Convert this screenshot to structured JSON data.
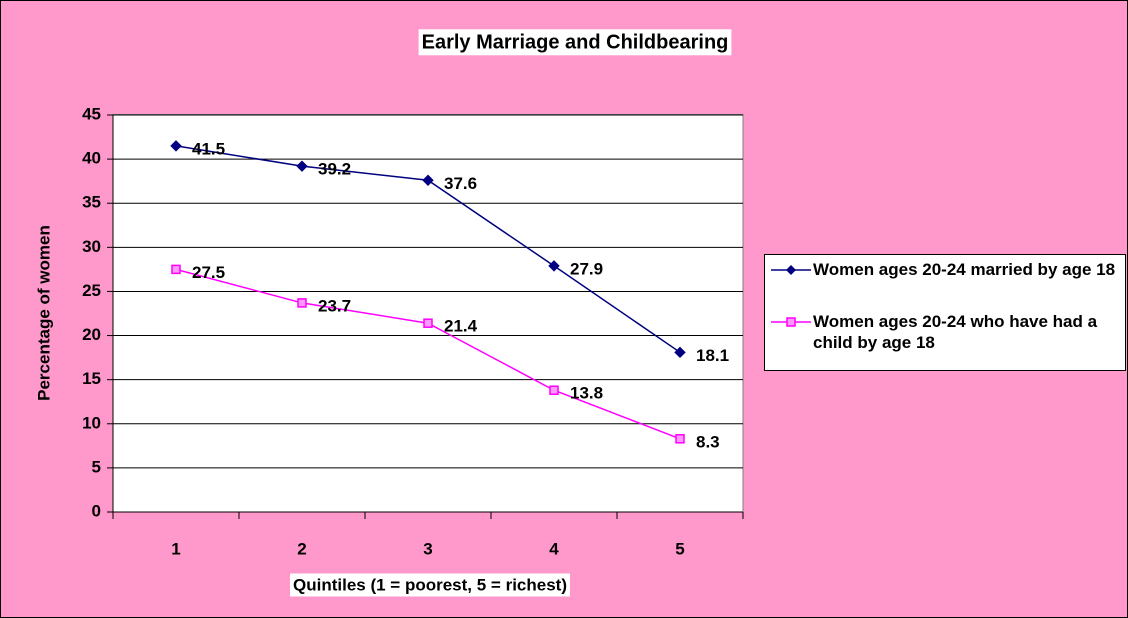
{
  "chart_data": {
    "type": "line",
    "title": "Early Marriage and Childbearing",
    "x_label": "Quintiles (1 = poorest, 5 = richest)",
    "y_label": "Percentage of women",
    "categories": [
      "1",
      "2",
      "3",
      "4",
      "5"
    ],
    "series": [
      {
        "name": "Women ages 20-24 married by age 18",
        "color": "#000080",
        "marker": "diamond",
        "values": [
          41.5,
          39.2,
          37.6,
          27.9,
          18.1
        ]
      },
      {
        "name": "Women ages 20-24 who have had a child by age 18",
        "color": "#FF00FF",
        "marker": "square",
        "values": [
          27.5,
          23.7,
          21.4,
          13.8,
          8.3
        ]
      }
    ],
    "ylim": [
      0,
      45
    ],
    "yticks": [
      0,
      5,
      10,
      15,
      20,
      25,
      30,
      35,
      40,
      45
    ],
    "grid": true,
    "background": "#FF99CC",
    "legend": "right"
  }
}
